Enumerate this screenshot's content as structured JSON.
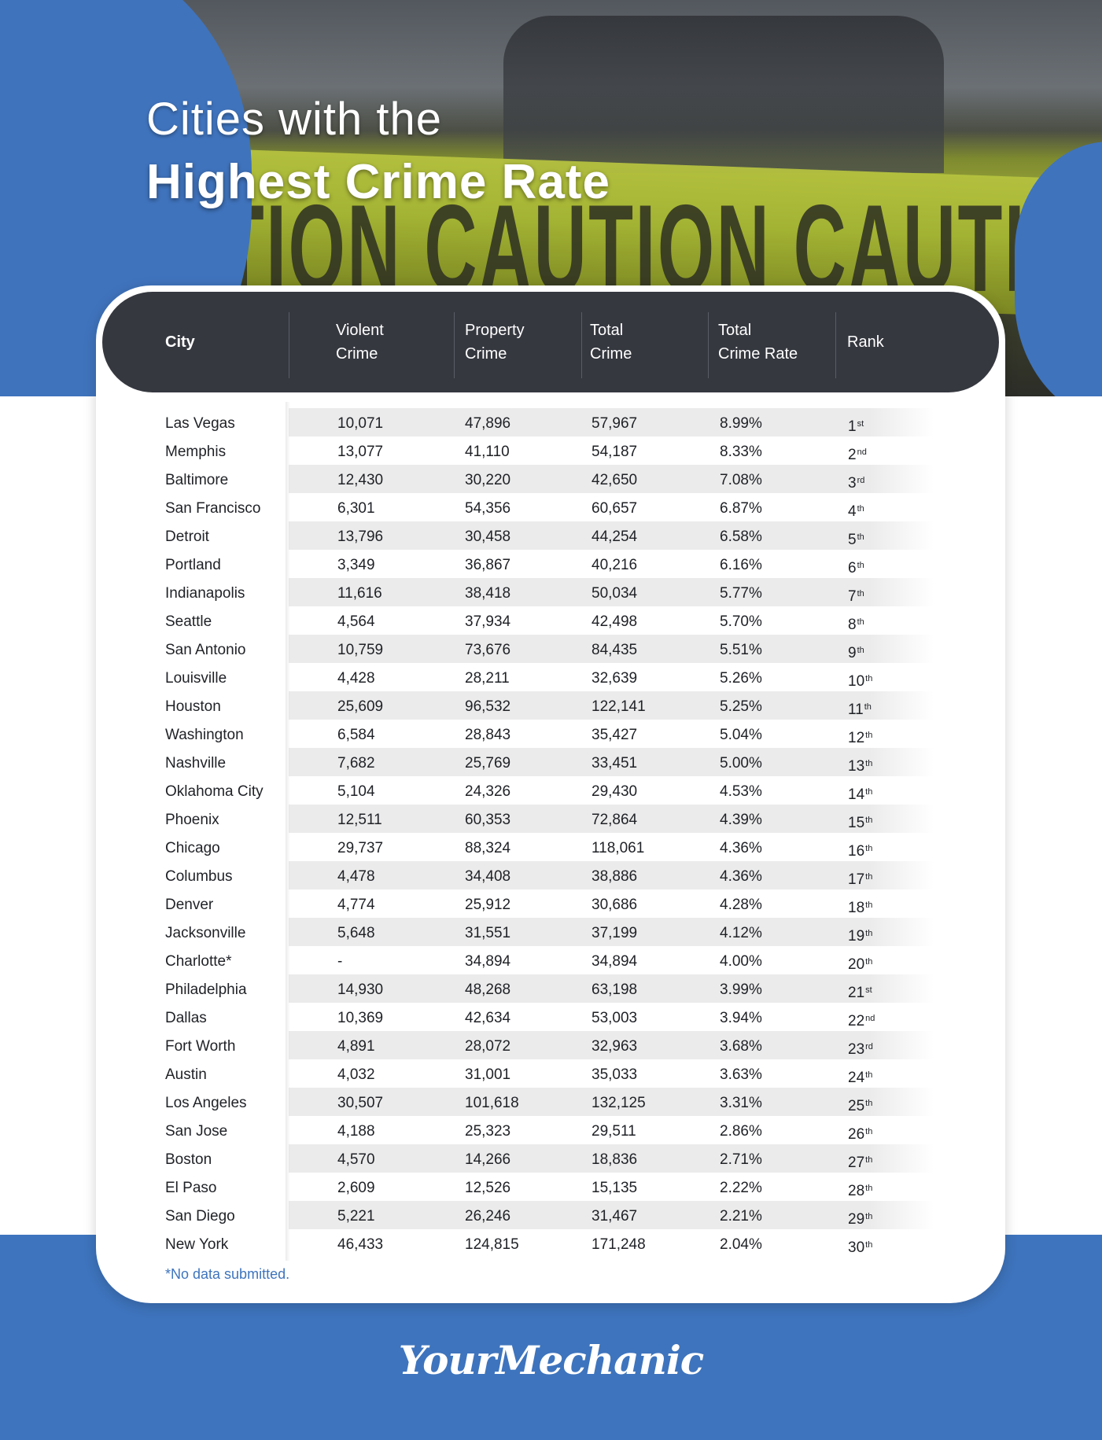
{
  "header": {
    "title_line1": "Cities with the",
    "title_line2": "Highest Crime Rate",
    "background_tape_text": "CAUTION CAUTION CAUTION"
  },
  "table": {
    "columns": [
      "City",
      "Violent\nCrime",
      "Property\nCrime",
      "Total\nCrime",
      "Total\nCrime Rate",
      "Rank"
    ],
    "footnote": "*No data submitted."
  },
  "chart_data": {
    "type": "table",
    "title": "Cities with the Highest Crime Rate",
    "columns": [
      "City",
      "Violent Crime",
      "Property Crime",
      "Total Crime",
      "Total Crime Rate",
      "Rank"
    ],
    "rows": [
      {
        "city": "Las Vegas",
        "violent": "10,071",
        "property": "47,896",
        "total": "57,967",
        "rate": "8.99%",
        "rank": "1",
        "suffix": "st"
      },
      {
        "city": "Memphis",
        "violent": "13,077",
        "property": "41,110",
        "total": "54,187",
        "rate": "8.33%",
        "rank": "2",
        "suffix": "nd"
      },
      {
        "city": "Baltimore",
        "violent": "12,430",
        "property": "30,220",
        "total": "42,650",
        "rate": "7.08%",
        "rank": "3",
        "suffix": "rd"
      },
      {
        "city": "San Francisco",
        "violent": "6,301",
        "property": "54,356",
        "total": "60,657",
        "rate": "6.87%",
        "rank": "4",
        "suffix": "th"
      },
      {
        "city": "Detroit",
        "violent": "13,796",
        "property": "30,458",
        "total": "44,254",
        "rate": "6.58%",
        "rank": "5",
        "suffix": "th"
      },
      {
        "city": "Portland",
        "violent": "3,349",
        "property": "36,867",
        "total": "40,216",
        "rate": "6.16%",
        "rank": "6",
        "suffix": "th"
      },
      {
        "city": "Indianapolis",
        "violent": "11,616",
        "property": "38,418",
        "total": "50,034",
        "rate": "5.77%",
        "rank": "7",
        "suffix": "th"
      },
      {
        "city": "Seattle",
        "violent": "4,564",
        "property": "37,934",
        "total": "42,498",
        "rate": "5.70%",
        "rank": "8",
        "suffix": "th"
      },
      {
        "city": "San Antonio",
        "violent": "10,759",
        "property": "73,676",
        "total": "84,435",
        "rate": "5.51%",
        "rank": "9",
        "suffix": "th"
      },
      {
        "city": "Louisville",
        "violent": "4,428",
        "property": "28,211",
        "total": "32,639",
        "rate": "5.26%",
        "rank": "10",
        "suffix": "th"
      },
      {
        "city": "Houston",
        "violent": "25,609",
        "property": "96,532",
        "total": "122,141",
        "rate": "5.25%",
        "rank": "11",
        "suffix": "th"
      },
      {
        "city": "Washington",
        "violent": "6,584",
        "property": "28,843",
        "total": "35,427",
        "rate": "5.04%",
        "rank": "12",
        "suffix": "th"
      },
      {
        "city": "Nashville",
        "violent": "7,682",
        "property": "25,769",
        "total": "33,451",
        "rate": "5.00%",
        "rank": "13",
        "suffix": "th"
      },
      {
        "city": "Oklahoma City",
        "violent": "5,104",
        "property": "24,326",
        "total": "29,430",
        "rate": "4.53%",
        "rank": "14",
        "suffix": "th"
      },
      {
        "city": "Phoenix",
        "violent": "12,511",
        "property": "60,353",
        "total": "72,864",
        "rate": "4.39%",
        "rank": "15",
        "suffix": "th"
      },
      {
        "city": "Chicago",
        "violent": "29,737",
        "property": "88,324",
        "total": "118,061",
        "rate": "4.36%",
        "rank": "16",
        "suffix": "th"
      },
      {
        "city": "Columbus",
        "violent": "4,478",
        "property": "34,408",
        "total": "38,886",
        "rate": "4.36%",
        "rank": "17",
        "suffix": "th"
      },
      {
        "city": "Denver",
        "violent": "4,774",
        "property": "25,912",
        "total": "30,686",
        "rate": "4.28%",
        "rank": "18",
        "suffix": "th"
      },
      {
        "city": "Jacksonville",
        "violent": "5,648",
        "property": "31,551",
        "total": "37,199",
        "rate": "4.12%",
        "rank": "19",
        "suffix": "th"
      },
      {
        "city": "Charlotte*",
        "violent": "-",
        "property": "34,894",
        "total": "34,894",
        "rate": "4.00%",
        "rank": "20",
        "suffix": "th"
      },
      {
        "city": "Philadelphia",
        "violent": "14,930",
        "property": "48,268",
        "total": "63,198",
        "rate": "3.99%",
        "rank": "21",
        "suffix": "st"
      },
      {
        "city": "Dallas",
        "violent": "10,369",
        "property": "42,634",
        "total": "53,003",
        "rate": "3.94%",
        "rank": "22",
        "suffix": "nd"
      },
      {
        "city": "Fort Worth",
        "violent": "4,891",
        "property": "28,072",
        "total": "32,963",
        "rate": "3.68%",
        "rank": "23",
        "suffix": "rd"
      },
      {
        "city": "Austin",
        "violent": "4,032",
        "property": "31,001",
        "total": "35,033",
        "rate": "3.63%",
        "rank": "24",
        "suffix": "th"
      },
      {
        "city": "Los Angeles",
        "violent": "30,507",
        "property": "101,618",
        "total": "132,125",
        "rate": "3.31%",
        "rank": "25",
        "suffix": "th"
      },
      {
        "city": "San Jose",
        "violent": "4,188",
        "property": "25,323",
        "total": "29,511",
        "rate": "2.86%",
        "rank": "26",
        "suffix": "th"
      },
      {
        "city": "Boston",
        "violent": "4,570",
        "property": "14,266",
        "total": "18,836",
        "rate": "2.71%",
        "rank": "27",
        "suffix": "th"
      },
      {
        "city": "El Paso",
        "violent": "2,609",
        "property": "12,526",
        "total": "15,135",
        "rate": "2.22%",
        "rank": "28",
        "suffix": "th"
      },
      {
        "city": "San Diego",
        "violent": "5,221",
        "property": "26,246",
        "total": "31,467",
        "rate": "2.21%",
        "rank": "29",
        "suffix": "th"
      },
      {
        "city": "New York",
        "violent": "46,433",
        "property": "124,815",
        "total": "171,248",
        "rate": "2.04%",
        "rank": "30",
        "suffix": "th"
      }
    ]
  },
  "footer": {
    "logo_text": "YourMechanic"
  },
  "colors": {
    "brand_blue": "#3e74bd",
    "header_dark": "#363840",
    "stripe_gray": "#ebebeb"
  }
}
